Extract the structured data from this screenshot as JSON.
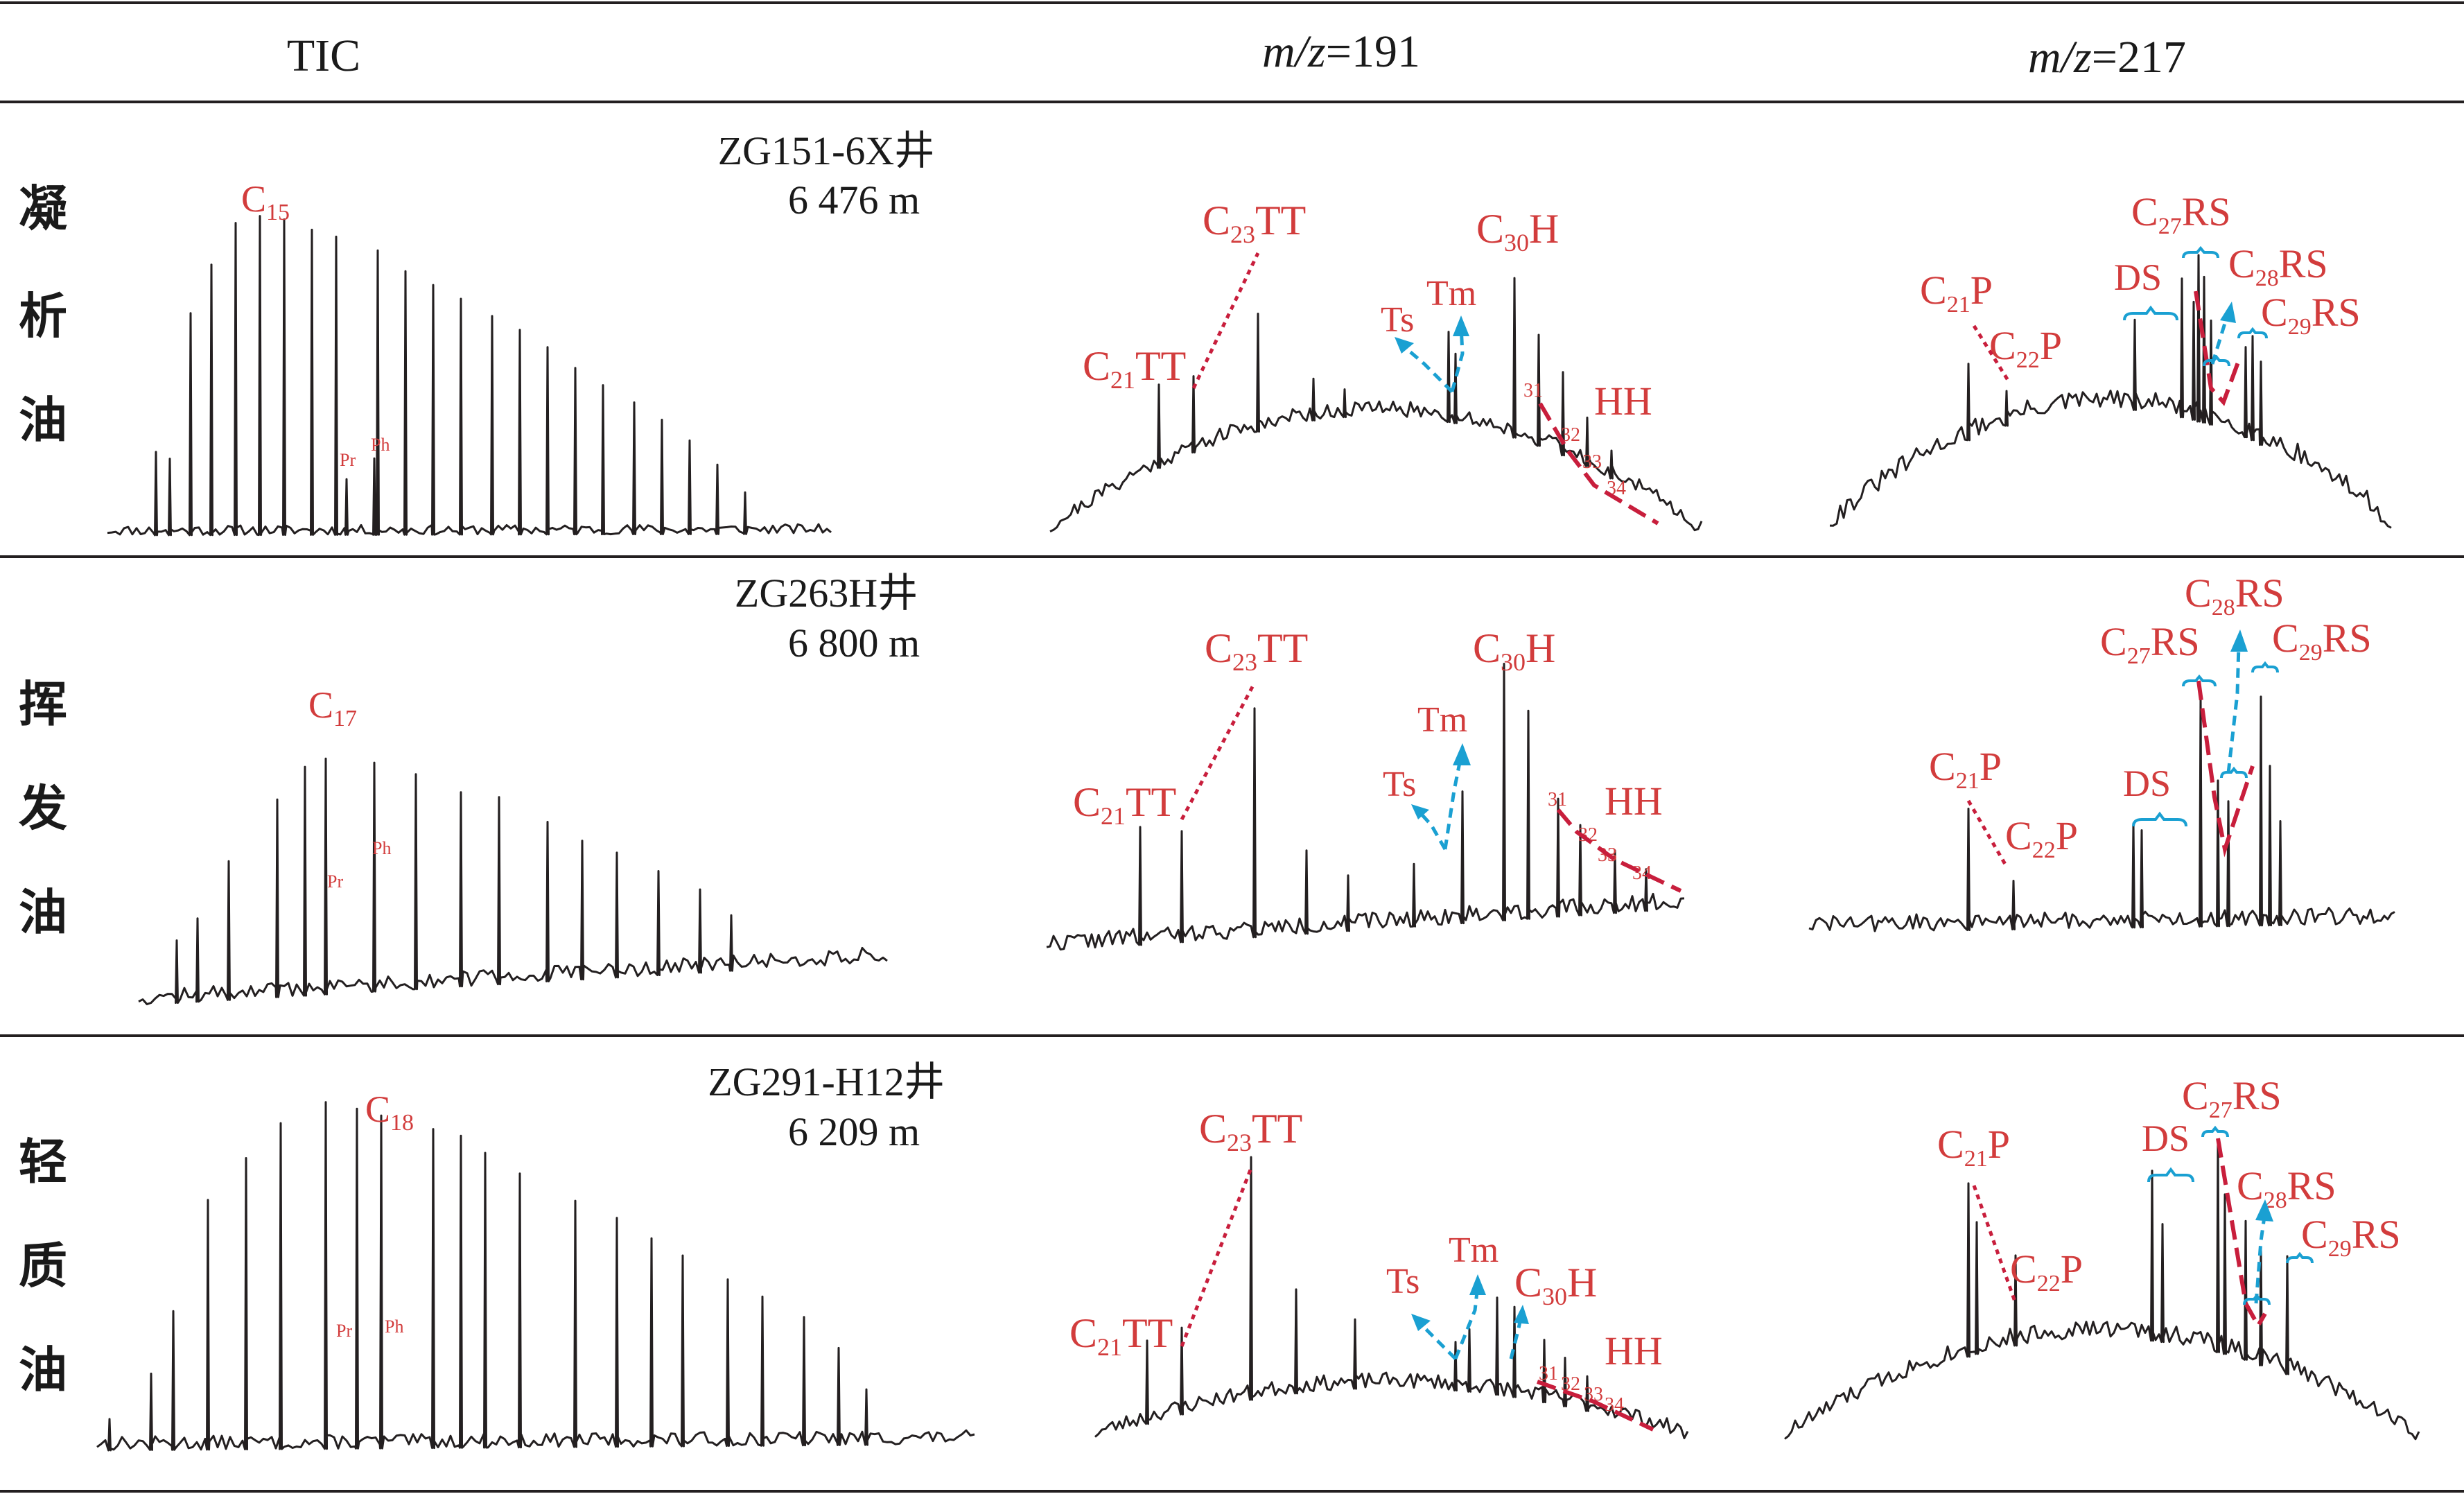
{
  "headers": {
    "tic": "TIC",
    "mz191": {
      "prefix": "m/z",
      "value": "=191"
    },
    "mz217": {
      "prefix": "m/z",
      "value": "=217"
    }
  },
  "colors": {
    "label": "#d23c3c",
    "trace": "#231f20",
    "arrow": "#1aa0d2",
    "dash": "#c81e3c"
  },
  "chart_data": [
    {
      "type": "line",
      "row_label": "凝析油",
      "well": "ZG151-6X井",
      "depth": "6 476 m",
      "tic_labels": {
        "main": "C",
        "main_sub": "15",
        "pr": "Pr",
        "ph": "Ph"
      }
    },
    {
      "type": "line",
      "row_label": "挥发油",
      "well": "ZG263H井",
      "depth": "6 800 m",
      "tic_labels": {
        "main": "C",
        "main_sub": "17",
        "pr": "Pr",
        "ph": "Ph"
      }
    },
    {
      "type": "line",
      "row_label": "轻质油",
      "well": "ZG291-H12井",
      "depth": "6 209 m",
      "tic_labels": {
        "main": "C",
        "main_sub": "18",
        "pr": "Pr",
        "ph": "Ph"
      }
    }
  ],
  "m191_labels": {
    "c21tt": {
      "c": "C",
      "sub": "21",
      "rest": "TT"
    },
    "c23tt": {
      "c": "C",
      "sub": "23",
      "rest": "TT"
    },
    "ts": "Ts",
    "tm": "Tm",
    "c30h": {
      "c": "C",
      "sub": "30",
      "rest": "H"
    },
    "hh": "HH",
    "n31": "31",
    "n32": "32",
    "n33": "33",
    "n34": "34"
  },
  "m217_labels": {
    "c21p": {
      "c": "C",
      "sub": "21",
      "rest": "P"
    },
    "c22p": {
      "c": "C",
      "sub": "22",
      "rest": "P"
    },
    "ds": "DS",
    "c27rs": {
      "c": "C",
      "sub": "27",
      "rest": "RS"
    },
    "c28rs": {
      "c": "C",
      "sub": "28",
      "rest": "RS"
    },
    "c29rs": {
      "c": "C",
      "sub": "29",
      "rest": "RS"
    }
  }
}
